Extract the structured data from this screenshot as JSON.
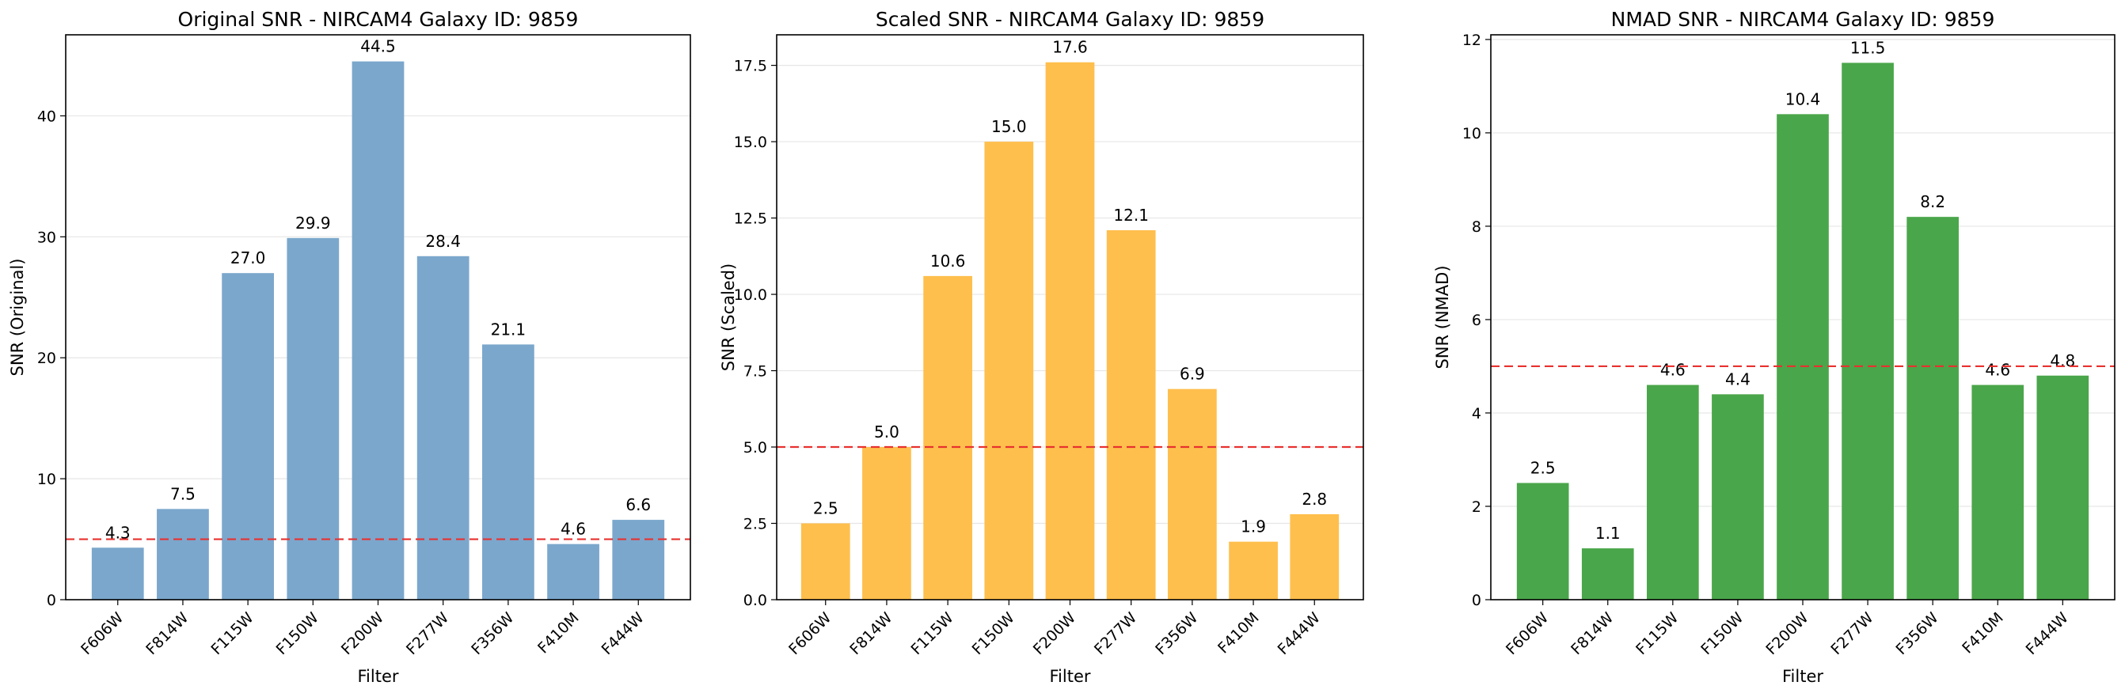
{
  "chart_data": [
    {
      "type": "bar",
      "title": "Original SNR - NIRCAM4 Galaxy ID: 9859",
      "xlabel": "Filter",
      "ylabel": "SNR (Original)",
      "categories": [
        "F606W",
        "F814W",
        "F115W",
        "F150W",
        "F200W",
        "F277W",
        "F356W",
        "F410M",
        "F444W"
      ],
      "values": [
        4.3,
        7.5,
        27.0,
        29.9,
        44.5,
        28.4,
        21.1,
        4.6,
        6.6
      ],
      "value_labels": [
        "4.3",
        "7.5",
        "27.0",
        "29.9",
        "44.5",
        "28.4",
        "21.1",
        "4.6",
        "6.6"
      ],
      "ylim": [
        0,
        46.7
      ],
      "yticks": [
        0,
        10,
        20,
        30,
        40
      ],
      "ytick_labels": [
        "0",
        "10",
        "20",
        "30",
        "40"
      ],
      "threshold": 5,
      "bar_color": "#7ba7cc",
      "threshold_color": "#e8312f",
      "grid": true
    },
    {
      "type": "bar",
      "title": "Scaled SNR - NIRCAM4 Galaxy ID: 9859",
      "xlabel": "Filter",
      "ylabel": "SNR (Scaled)",
      "categories": [
        "F606W",
        "F814W",
        "F115W",
        "F150W",
        "F200W",
        "F277W",
        "F356W",
        "F410M",
        "F444W"
      ],
      "values": [
        2.5,
        5.0,
        10.6,
        15.0,
        17.6,
        12.1,
        6.9,
        1.9,
        2.8
      ],
      "value_labels": [
        "2.5",
        "5.0",
        "10.6",
        "15.0",
        "17.6",
        "12.1",
        "6.9",
        "1.9",
        "2.8"
      ],
      "ylim": [
        0,
        18.5
      ],
      "yticks": [
        0,
        2.5,
        5,
        7.5,
        10,
        12.5,
        15,
        17.5
      ],
      "ytick_labels": [
        "0.0",
        "2.5",
        "5.0",
        "7.5",
        "10.0",
        "12.5",
        "15.0",
        "17.5"
      ],
      "threshold": 5,
      "bar_color": "#ffbf4d",
      "threshold_color": "#e8312f",
      "grid": true
    },
    {
      "type": "bar",
      "title": "NMAD SNR - NIRCAM4 Galaxy ID: 9859",
      "xlabel": "Filter",
      "ylabel": "SNR (NMAD)",
      "categories": [
        "F606W",
        "F814W",
        "F115W",
        "F150W",
        "F200W",
        "F277W",
        "F356W",
        "F410M",
        "F444W"
      ],
      "values": [
        2.5,
        1.1,
        4.6,
        4.4,
        10.4,
        11.5,
        8.2,
        4.6,
        4.8
      ],
      "value_labels": [
        "2.5",
        "1.1",
        "4.6",
        "4.4",
        "10.4",
        "11.5",
        "8.2",
        "4.6",
        "4.8"
      ],
      "ylim": [
        0,
        12.1
      ],
      "yticks": [
        0,
        2,
        4,
        6,
        8,
        10,
        12
      ],
      "ytick_labels": [
        "0",
        "2",
        "4",
        "6",
        "8",
        "10",
        "12"
      ],
      "threshold": 5,
      "bar_color": "#4aa64a",
      "threshold_color": "#e8312f",
      "grid": true
    }
  ]
}
